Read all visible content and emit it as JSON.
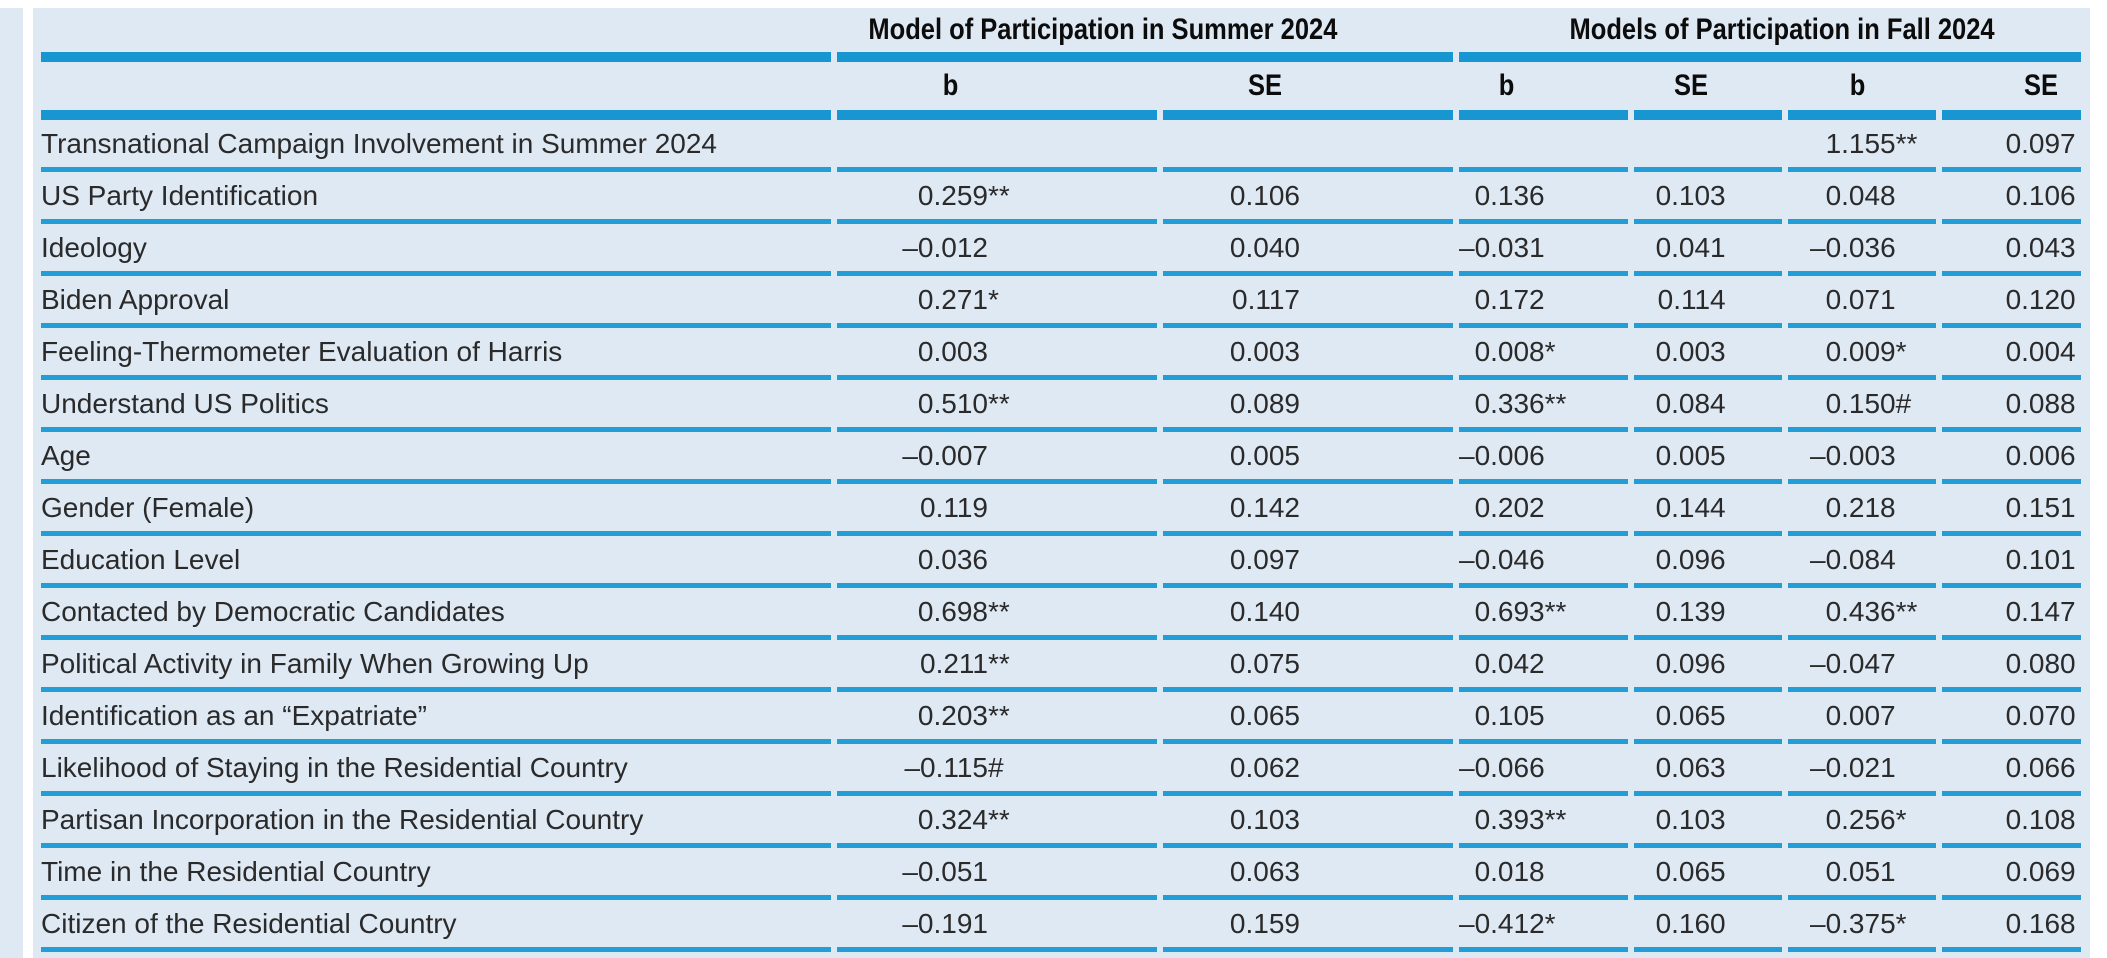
{
  "table": {
    "column_groups": [
      {
        "label": "Model of Participation in Summer 2024",
        "span": 2
      },
      {
        "label": "Models of Participation in Fall 2024",
        "span": 4
      }
    ],
    "column_headers": [
      "b",
      "SE",
      "b",
      "SE",
      "b",
      "SE"
    ],
    "rows": [
      {
        "label": "Transnational Campaign Involvement in Summer 2024",
        "values": [
          "",
          "",
          "",
          "",
          "1.155**",
          "0.097"
        ]
      },
      {
        "label": "US Party Identification",
        "values": [
          "0.259**",
          "0.106",
          "0.136",
          "0.103",
          "0.048",
          "0.106"
        ]
      },
      {
        "label": "Ideology",
        "values": [
          "–0.012",
          "0.040",
          "–0.031",
          "0.041",
          "–0.036",
          "0.043"
        ]
      },
      {
        "label": "Biden Approval",
        "values": [
          "0.271*",
          "0.117",
          "0.172",
          "0.114",
          "0.071",
          "0.120"
        ]
      },
      {
        "label": "Feeling-Thermometer Evaluation of Harris",
        "values": [
          "0.003",
          "0.003",
          "0.008*",
          "0.003",
          "0.009*",
          "0.004"
        ]
      },
      {
        "label": "Understand US Politics",
        "values": [
          "0.510**",
          "0.089",
          "0.336**",
          "0.084",
          "0.150#",
          "0.088"
        ]
      },
      {
        "label": "Age",
        "values": [
          "–0.007",
          "0.005",
          "–0.006",
          "0.005",
          "–0.003",
          "0.006"
        ]
      },
      {
        "label": "Gender (Female)",
        "values": [
          "0.119",
          "0.142",
          "0.202",
          "0.144",
          "0.218",
          "0.151"
        ]
      },
      {
        "label": "Education Level",
        "values": [
          "0.036",
          "0.097",
          "–0.046",
          "0.096",
          "–0.084",
          "0.101"
        ]
      },
      {
        "label": "Contacted by Democratic Candidates",
        "values": [
          "0.698**",
          "0.140",
          "0.693**",
          "0.139",
          "0.436**",
          "0.147"
        ]
      },
      {
        "label": "Political Activity in Family When Growing Up",
        "values": [
          "0.211**",
          "0.075",
          "0.042",
          "0.096",
          "–0.047",
          "0.080"
        ]
      },
      {
        "label": "Identification as an “Expatriate”",
        "values": [
          "0.203**",
          "0.065",
          "0.105",
          "0.065",
          "0.007",
          "0.070"
        ]
      },
      {
        "label": "Likelihood of Staying in the Residential Country",
        "values": [
          "–0.115#",
          "0.062",
          "–0.066",
          "0.063",
          "–0.021",
          "0.066"
        ]
      },
      {
        "label": "Partisan Incorporation in the Residential Country",
        "values": [
          "0.324**",
          "0.103",
          "0.393**",
          "0.103",
          "0.256*",
          "0.108"
        ]
      },
      {
        "label": "Time in the Residential Country",
        "values": [
          "–0.051",
          "0.063",
          "0.018",
          "0.065",
          "0.051",
          "0.069"
        ]
      },
      {
        "label": "Citizen of the Residential Country",
        "values": [
          "–0.191",
          "0.159",
          "–0.412*",
          "0.160",
          "–0.375*",
          "0.168"
        ]
      }
    ]
  },
  "colors": {
    "panel_background": "#dfe9f4",
    "thick_rule": "#1796d2",
    "thin_rule": "#239dd6",
    "text": "#2a2a2a"
  }
}
